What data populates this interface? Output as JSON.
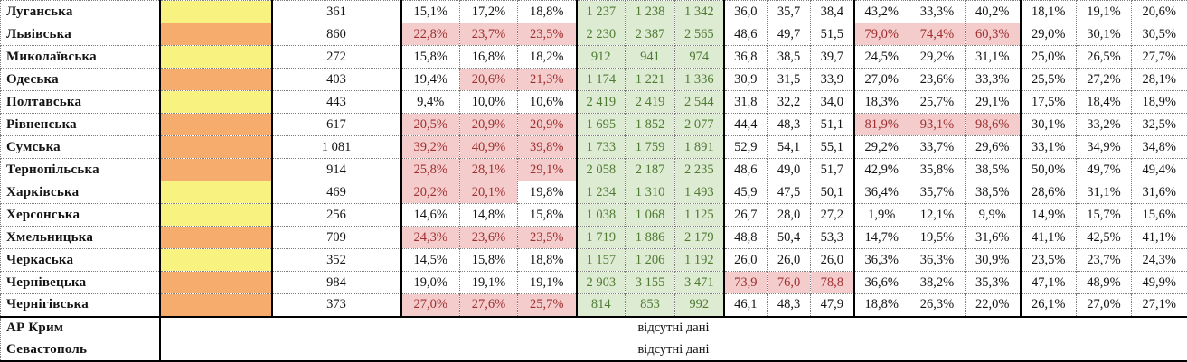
{
  "table": {
    "colors": {
      "yellow": "#F8F381",
      "orange": "#F5AC6C",
      "pink_bg": "#F3CCCB",
      "pink_text": "#9E2F31",
      "green_bg": "#DEEBD3",
      "green_text": "#4E7B31"
    },
    "rows": [
      {
        "name": "Луганська",
        "swatch": "yellow",
        "total": "361",
        "pct1": [
          "15,1%",
          "17,2%",
          "18,8%"
        ],
        "pct1_hl": [
          false,
          false,
          false
        ],
        "green": [
          "1 237",
          "1 238",
          "1 342"
        ],
        "dec": [
          "36,0",
          "35,7",
          "38,4"
        ],
        "dec_hl": [
          false,
          false,
          false
        ],
        "pct2": [
          "43,2%",
          "33,3%",
          "40,2%"
        ],
        "pct2_hl": [
          false,
          false,
          false
        ],
        "pct3": [
          "18,1%",
          "19,1%",
          "20,6%"
        ]
      },
      {
        "name": "Львівська",
        "swatch": "orange",
        "total": "860",
        "pct1": [
          "22,8%",
          "23,7%",
          "23,5%"
        ],
        "pct1_hl": [
          true,
          true,
          true
        ],
        "green": [
          "2 230",
          "2 387",
          "2 565"
        ],
        "dec": [
          "48,6",
          "49,7",
          "51,5"
        ],
        "dec_hl": [
          false,
          false,
          false
        ],
        "pct2": [
          "79,0%",
          "74,4%",
          "60,3%"
        ],
        "pct2_hl": [
          true,
          true,
          true
        ],
        "pct3": [
          "29,0%",
          "30,1%",
          "30,5%"
        ]
      },
      {
        "name": "Миколаївська",
        "swatch": "yellow",
        "total": "272",
        "pct1": [
          "15,8%",
          "16,8%",
          "18,2%"
        ],
        "pct1_hl": [
          false,
          false,
          false
        ],
        "green": [
          "912",
          "941",
          "974"
        ],
        "dec": [
          "36,8",
          "38,5",
          "39,7"
        ],
        "dec_hl": [
          false,
          false,
          false
        ],
        "pct2": [
          "24,5%",
          "29,2%",
          "31,1%"
        ],
        "pct2_hl": [
          false,
          false,
          false
        ],
        "pct3": [
          "25,0%",
          "26,5%",
          "27,7%"
        ]
      },
      {
        "name": "Одеська",
        "swatch": "orange",
        "total": "403",
        "pct1": [
          "19,4%",
          "20,6%",
          "21,3%"
        ],
        "pct1_hl": [
          false,
          true,
          true
        ],
        "green": [
          "1 174",
          "1 221",
          "1 336"
        ],
        "dec": [
          "30,9",
          "31,5",
          "33,9"
        ],
        "dec_hl": [
          false,
          false,
          false
        ],
        "pct2": [
          "27,0%",
          "23,6%",
          "33,3%"
        ],
        "pct2_hl": [
          false,
          false,
          false
        ],
        "pct3": [
          "25,5%",
          "27,2%",
          "28,1%"
        ]
      },
      {
        "name": "Полтавська",
        "swatch": "yellow",
        "total": "443",
        "pct1": [
          "9,4%",
          "10,0%",
          "10,6%"
        ],
        "pct1_hl": [
          false,
          false,
          false
        ],
        "green": [
          "2 419",
          "2 419",
          "2 544"
        ],
        "dec": [
          "31,8",
          "32,2",
          "34,0"
        ],
        "dec_hl": [
          false,
          false,
          false
        ],
        "pct2": [
          "18,3%",
          "25,7%",
          "29,1%"
        ],
        "pct2_hl": [
          false,
          false,
          false
        ],
        "pct3": [
          "17,5%",
          "18,4%",
          "18,9%"
        ]
      },
      {
        "name": "Рівненська",
        "swatch": "orange",
        "total": "617",
        "pct1": [
          "20,5%",
          "20,9%",
          "20,9%"
        ],
        "pct1_hl": [
          true,
          true,
          true
        ],
        "green": [
          "1 695",
          "1 852",
          "2 077"
        ],
        "dec": [
          "44,4",
          "48,3",
          "51,1"
        ],
        "dec_hl": [
          false,
          false,
          false
        ],
        "pct2": [
          "81,9%",
          "93,1%",
          "98,6%"
        ],
        "pct2_hl": [
          true,
          true,
          true
        ],
        "pct3": [
          "30,1%",
          "33,2%",
          "32,5%"
        ]
      },
      {
        "name": "Сумська",
        "swatch": "orange",
        "total": "1 081",
        "pct1": [
          "39,2%",
          "40,9%",
          "39,8%"
        ],
        "pct1_hl": [
          true,
          true,
          true
        ],
        "green": [
          "1 733",
          "1 759",
          "1 891"
        ],
        "dec": [
          "52,9",
          "54,1",
          "55,1"
        ],
        "dec_hl": [
          false,
          false,
          false
        ],
        "pct2": [
          "29,2%",
          "33,7%",
          "29,6%"
        ],
        "pct2_hl": [
          false,
          false,
          false
        ],
        "pct3": [
          "33,1%",
          "34,9%",
          "34,8%"
        ]
      },
      {
        "name": "Тернопільська",
        "swatch": "orange",
        "total": "914",
        "pct1": [
          "25,8%",
          "28,1%",
          "29,1%"
        ],
        "pct1_hl": [
          true,
          true,
          true
        ],
        "green": [
          "2 058",
          "2 187",
          "2 235"
        ],
        "dec": [
          "48,6",
          "49,0",
          "51,7"
        ],
        "dec_hl": [
          false,
          false,
          false
        ],
        "pct2": [
          "42,9%",
          "35,8%",
          "38,5%"
        ],
        "pct2_hl": [
          false,
          false,
          false
        ],
        "pct3": [
          "50,0%",
          "49,7%",
          "49,4%"
        ]
      },
      {
        "name": "Харківська",
        "swatch": "yellow",
        "total": "469",
        "pct1": [
          "20,2%",
          "20,1%",
          "19,8%"
        ],
        "pct1_hl": [
          true,
          true,
          false
        ],
        "green": [
          "1 234",
          "1 310",
          "1 493"
        ],
        "dec": [
          "45,9",
          "47,5",
          "50,1"
        ],
        "dec_hl": [
          false,
          false,
          false
        ],
        "pct2": [
          "36,4%",
          "35,7%",
          "38,5%"
        ],
        "pct2_hl": [
          false,
          false,
          false
        ],
        "pct3": [
          "28,6%",
          "31,1%",
          "31,6%"
        ]
      },
      {
        "name": "Херсонська",
        "swatch": "yellow",
        "total": "256",
        "pct1": [
          "14,6%",
          "14,8%",
          "15,8%"
        ],
        "pct1_hl": [
          false,
          false,
          false
        ],
        "green": [
          "1 038",
          "1 068",
          "1 125"
        ],
        "dec": [
          "26,7",
          "28,0",
          "27,2"
        ],
        "dec_hl": [
          false,
          false,
          false
        ],
        "pct2": [
          "1,9%",
          "12,1%",
          "9,9%"
        ],
        "pct2_hl": [
          false,
          false,
          false
        ],
        "pct3": [
          "14,9%",
          "15,7%",
          "15,6%"
        ]
      },
      {
        "name": "Хмельницька",
        "swatch": "orange",
        "total": "709",
        "pct1": [
          "24,3%",
          "23,6%",
          "23,5%"
        ],
        "pct1_hl": [
          true,
          true,
          true
        ],
        "green": [
          "1 719",
          "1 886",
          "2 179"
        ],
        "dec": [
          "48,8",
          "50,4",
          "53,3"
        ],
        "dec_hl": [
          false,
          false,
          false
        ],
        "pct2": [
          "14,7%",
          "19,5%",
          "31,6%"
        ],
        "pct2_hl": [
          false,
          false,
          false
        ],
        "pct3": [
          "41,1%",
          "42,5%",
          "41,1%"
        ]
      },
      {
        "name": "Черкаська",
        "swatch": "yellow",
        "total": "352",
        "pct1": [
          "14,5%",
          "15,8%",
          "18,8%"
        ],
        "pct1_hl": [
          false,
          false,
          false
        ],
        "green": [
          "1 157",
          "1 206",
          "1 192"
        ],
        "dec": [
          "26,0",
          "26,0",
          "26,0"
        ],
        "dec_hl": [
          false,
          false,
          false
        ],
        "pct2": [
          "36,3%",
          "36,3%",
          "30,9%"
        ],
        "pct2_hl": [
          false,
          false,
          false
        ],
        "pct3": [
          "23,5%",
          "23,7%",
          "24,3%"
        ]
      },
      {
        "name": "Чернівецька",
        "swatch": "orange",
        "total": "984",
        "pct1": [
          "19,0%",
          "19,1%",
          "19,1%"
        ],
        "pct1_hl": [
          false,
          false,
          false
        ],
        "green": [
          "2 903",
          "3 155",
          "3 471"
        ],
        "dec": [
          "73,9",
          "76,0",
          "78,8"
        ],
        "dec_hl": [
          true,
          true,
          true
        ],
        "pct2": [
          "36,6%",
          "38,2%",
          "35,3%"
        ],
        "pct2_hl": [
          false,
          false,
          false
        ],
        "pct3": [
          "47,1%",
          "48,9%",
          "49,9%"
        ]
      },
      {
        "name": "Чернігівська",
        "swatch": "orange",
        "total": "373",
        "pct1": [
          "27,0%",
          "27,6%",
          "25,7%"
        ],
        "pct1_hl": [
          true,
          true,
          true
        ],
        "green": [
          "814",
          "853",
          "992"
        ],
        "dec": [
          "46,1",
          "48,3",
          "47,9"
        ],
        "dec_hl": [
          false,
          false,
          false
        ],
        "pct2": [
          "18,8%",
          "26,3%",
          "22,0%"
        ],
        "pct2_hl": [
          false,
          false,
          false
        ],
        "pct3": [
          "26,1%",
          "27,0%",
          "27,1%"
        ]
      }
    ],
    "missing_rows": [
      {
        "name": "АР Крим",
        "value": "відсутні дані"
      },
      {
        "name": "Севастополь",
        "value": "відсутні дані"
      }
    ]
  }
}
